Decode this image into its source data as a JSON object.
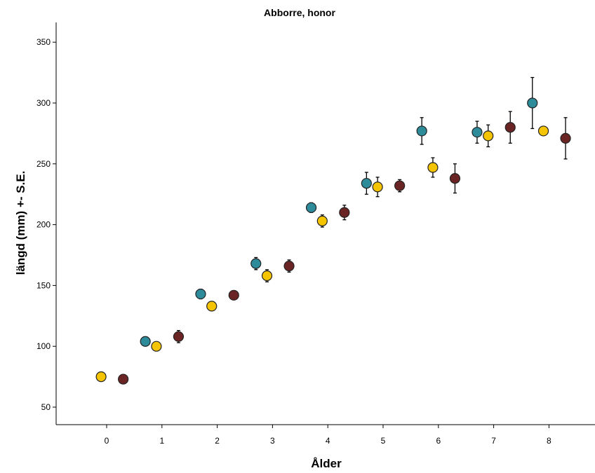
{
  "chart_data": {
    "type": "scatter",
    "title": "Abborre, honor",
    "xlabel": "Ålder",
    "ylabel": "längd (mm) +- S.E.",
    "x_ticks": [
      "0",
      "1",
      "2",
      "3",
      "4",
      "5",
      "6",
      "7",
      "8"
    ],
    "y_ticks": [
      "50",
      "100",
      "150",
      "200",
      "250",
      "300",
      "350"
    ],
    "xlim": [
      -0.9,
      9.0
    ],
    "ylim": [
      30,
      365
    ],
    "grid": false,
    "series": [
      {
        "color": "#2e8b9a",
        "points": [
          {
            "x": 0.7,
            "y": 104,
            "se": 0
          },
          {
            "x": 1.7,
            "y": 143,
            "se": 4
          },
          {
            "x": 2.7,
            "y": 168,
            "se": 5
          },
          {
            "x": 3.7,
            "y": 214,
            "se": 4
          },
          {
            "x": 4.7,
            "y": 234,
            "se": 9
          },
          {
            "x": 5.7,
            "y": 277,
            "se": 11
          },
          {
            "x": 6.7,
            "y": 276,
            "se": 9
          },
          {
            "x": 7.7,
            "y": 300,
            "se": 21
          }
        ]
      },
      {
        "color": "#f5c400",
        "points": [
          {
            "x": -0.1,
            "y": 75,
            "se": 0
          },
          {
            "x": 0.9,
            "y": 100,
            "se": 0
          },
          {
            "x": 1.9,
            "y": 133,
            "se": 0
          },
          {
            "x": 2.9,
            "y": 158,
            "se": 5
          },
          {
            "x": 3.9,
            "y": 203,
            "se": 5
          },
          {
            "x": 4.9,
            "y": 231,
            "se": 8
          },
          {
            "x": 5.9,
            "y": 247,
            "se": 8
          },
          {
            "x": 6.9,
            "y": 273,
            "se": 9
          },
          {
            "x": 7.9,
            "y": 277,
            "se": 0
          }
        ]
      },
      {
        "color": "#6b2424",
        "points": [
          {
            "x": 0.3,
            "y": 73,
            "se": 0
          },
          {
            "x": 1.3,
            "y": 108,
            "se": 5
          },
          {
            "x": 2.3,
            "y": 142,
            "se": 0
          },
          {
            "x": 3.3,
            "y": 166,
            "se": 5
          },
          {
            "x": 4.3,
            "y": 210,
            "se": 6
          },
          {
            "x": 5.3,
            "y": 232,
            "se": 5
          },
          {
            "x": 6.3,
            "y": 238,
            "se": 12
          },
          {
            "x": 7.3,
            "y": 280,
            "se": 13
          },
          {
            "x": 8.3,
            "y": 271,
            "se": 17
          }
        ]
      }
    ]
  }
}
